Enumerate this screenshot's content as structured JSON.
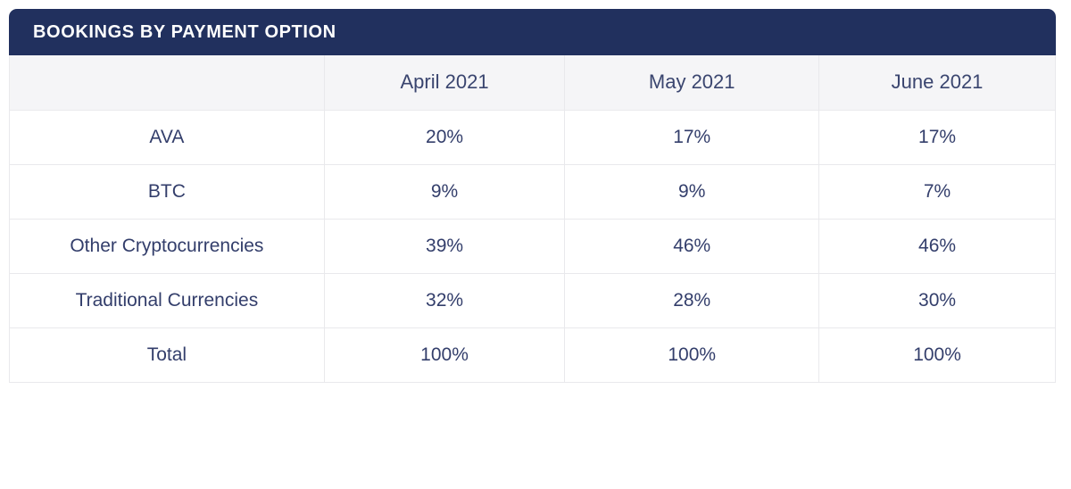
{
  "title": "BOOKINGS BY PAYMENT OPTION",
  "table": {
    "corner_label": "",
    "columns": [
      "April 2021",
      "May 2021",
      "June 2021"
    ],
    "rows": [
      {
        "label": "AVA",
        "values": [
          "20%",
          "17%",
          "17%"
        ]
      },
      {
        "label": "BTC",
        "values": [
          "9%",
          "9%",
          "7%"
        ]
      },
      {
        "label": "Other Cryptocurrencies",
        "values": [
          "39%",
          "46%",
          "46%"
        ]
      },
      {
        "label": "Traditional Currencies",
        "values": [
          "32%",
          "28%",
          "30%"
        ]
      },
      {
        "label": "Total",
        "values": [
          "100%",
          "100%",
          "100%"
        ]
      }
    ]
  },
  "colors": {
    "title_bar_bg": "#21305e",
    "title_text": "#ffffff",
    "header_row_bg": "#f5f5f7",
    "cell_text": "#333e6b",
    "border": "#e9e9ec",
    "page_bg": "#ffffff"
  },
  "chart_data": {
    "type": "table",
    "title": "BOOKINGS BY PAYMENT OPTION",
    "columns": [
      "April 2021",
      "May 2021",
      "June 2021"
    ],
    "row_labels": [
      "AVA",
      "BTC",
      "Other Cryptocurrencies",
      "Traditional Currencies",
      "Total"
    ],
    "values_percent": [
      [
        20,
        17,
        17
      ],
      [
        9,
        9,
        7
      ],
      [
        39,
        46,
        46
      ],
      [
        32,
        28,
        30
      ],
      [
        100,
        100,
        100
      ]
    ],
    "unit": "%"
  }
}
